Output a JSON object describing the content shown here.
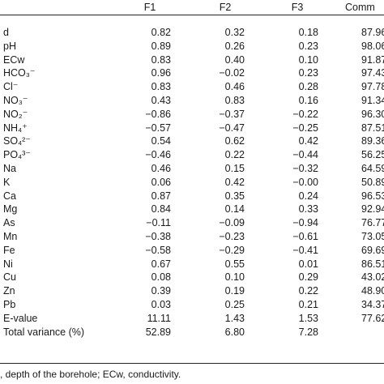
{
  "table": {
    "headers": {
      "f1": "F1",
      "f2": "F2",
      "f3": "F3",
      "communality": "Comm"
    },
    "rows": [
      {
        "label": "d",
        "f1": "0.82",
        "f2": "0.32",
        "f3": "0.18",
        "comm": "87.96"
      },
      {
        "label": "pH",
        "f1": "0.89",
        "f2": "0.26",
        "f3": "0.23",
        "comm": "98.06"
      },
      {
        "label": "ECw",
        "f1": "0.83",
        "f2": "0.40",
        "f3": "0.10",
        "comm": "91.87"
      },
      {
        "label": "HCO₃⁻",
        "f1": "0.96",
        "f2": "−0.02",
        "f3": "0.23",
        "comm": "97.43"
      },
      {
        "label": "Cl⁻",
        "f1": "0.83",
        "f2": "0.46",
        "f3": "0.28",
        "comm": "97.78"
      },
      {
        "label": "NO₃⁻",
        "f1": "0.43",
        "f2": "0.83",
        "f3": "0.16",
        "comm": "91.34"
      },
      {
        "label": "NO₂⁻",
        "f1": "−0.86",
        "f2": "−0.37",
        "f3": "−0.22",
        "comm": "96.30"
      },
      {
        "label": "NH₄⁺",
        "f1": "−0.57",
        "f2": "−0.47",
        "f3": "−0.25",
        "comm": "87.51"
      },
      {
        "label": "SO₄²⁻",
        "f1": "0.54",
        "f2": "0.62",
        "f3": "0.42",
        "comm": "89.36"
      },
      {
        "label": "PO₄³⁻",
        "f1": "−0.46",
        "f2": "0.22",
        "f3": "−0.44",
        "comm": "56.25"
      },
      {
        "label": "Na",
        "f1": "0.46",
        "f2": "0.15",
        "f3": "−0.32",
        "comm": "64.59"
      },
      {
        "label": "K",
        "f1": "0.06",
        "f2": "0.42",
        "f3": "−0.00",
        "comm": "50.89"
      },
      {
        "label": "Ca",
        "f1": "0.87",
        "f2": "0.35",
        "f3": "0.24",
        "comm": "96.53"
      },
      {
        "label": "Mg",
        "f1": "0.84",
        "f2": "0.14",
        "f3": "0.33",
        "comm": "92.94"
      },
      {
        "label": "As",
        "f1": "−0.11",
        "f2": "−0.09",
        "f3": "−0.94",
        "comm": "76.77"
      },
      {
        "label": "Mn",
        "f1": "−0.38",
        "f2": "−0.23",
        "f3": "−0.61",
        "comm": "73.05"
      },
      {
        "label": "Fe",
        "f1": "−0.58",
        "f2": "−0.29",
        "f3": "−0.41",
        "comm": "69.69"
      },
      {
        "label": "Ni",
        "f1": "0.67",
        "f2": "0.55",
        "f3": "0.01",
        "comm": "86.51"
      },
      {
        "label": "Cu",
        "f1": "0.08",
        "f2": "0.10",
        "f3": "0.29",
        "comm": "43.02"
      },
      {
        "label": "Zn",
        "f1": "0.39",
        "f2": "0.19",
        "f3": "0.22",
        "comm": "48.90"
      },
      {
        "label": "Pb",
        "f1": "0.03",
        "f2": "0.25",
        "f3": "0.21",
        "comm": "34.37"
      },
      {
        "label": "E-value",
        "f1": "11.11",
        "f2": "1.43",
        "f3": "1.53",
        "comm": "77.62"
      },
      {
        "label": "Total variance (%)",
        "f1": "52.89",
        "f2": "6.80",
        "f3": "7.28",
        "comm": ""
      }
    ]
  },
  "footnote": ", depth of the borehole; ECw, conductivity."
}
